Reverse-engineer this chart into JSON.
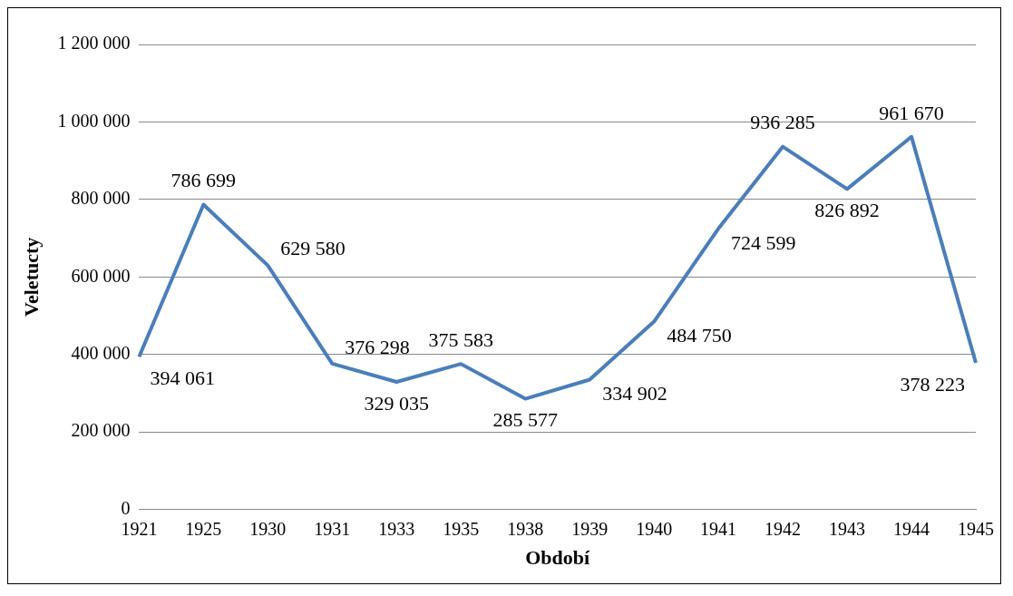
{
  "chart_data": {
    "type": "line",
    "xlabel": "Období",
    "ylabel": "Veletucty",
    "categories": [
      "1921",
      "1925",
      "1930",
      "1931",
      "1933",
      "1935",
      "1938",
      "1939",
      "1940",
      "1941",
      "1942",
      "1943",
      "1944",
      "1945"
    ],
    "series": [
      {
        "color": "#4a7ebb",
        "values": [
          394061,
          786699,
          629580,
          376298,
          329035,
          375583,
          285577,
          334902,
          484750,
          724599,
          936285,
          826892,
          961670,
          378223
        ],
        "value_labels": [
          "394 061",
          "786 699",
          "629 580",
          "376 298",
          "329 035",
          "375 583",
          "285 577",
          "334 902",
          "484 750",
          "724 599",
          "936 285",
          "826 892",
          "961 670",
          "378 223"
        ]
      }
    ],
    "ylim": [
      0,
      1200000
    ],
    "yticks": [
      {
        "value": 0,
        "label": "0"
      },
      {
        "value": 200000,
        "label": "200 000"
      },
      {
        "value": 400000,
        "label": "400 000"
      },
      {
        "value": 600000,
        "label": "600 000"
      },
      {
        "value": 800000,
        "label": "800 000"
      },
      {
        "value": 1000000,
        "label": "1 000 000"
      },
      {
        "value": 1200000,
        "label": "1 200 000"
      }
    ],
    "grid": "y",
    "legend": false,
    "marker": "none",
    "line_style": "solid"
  }
}
